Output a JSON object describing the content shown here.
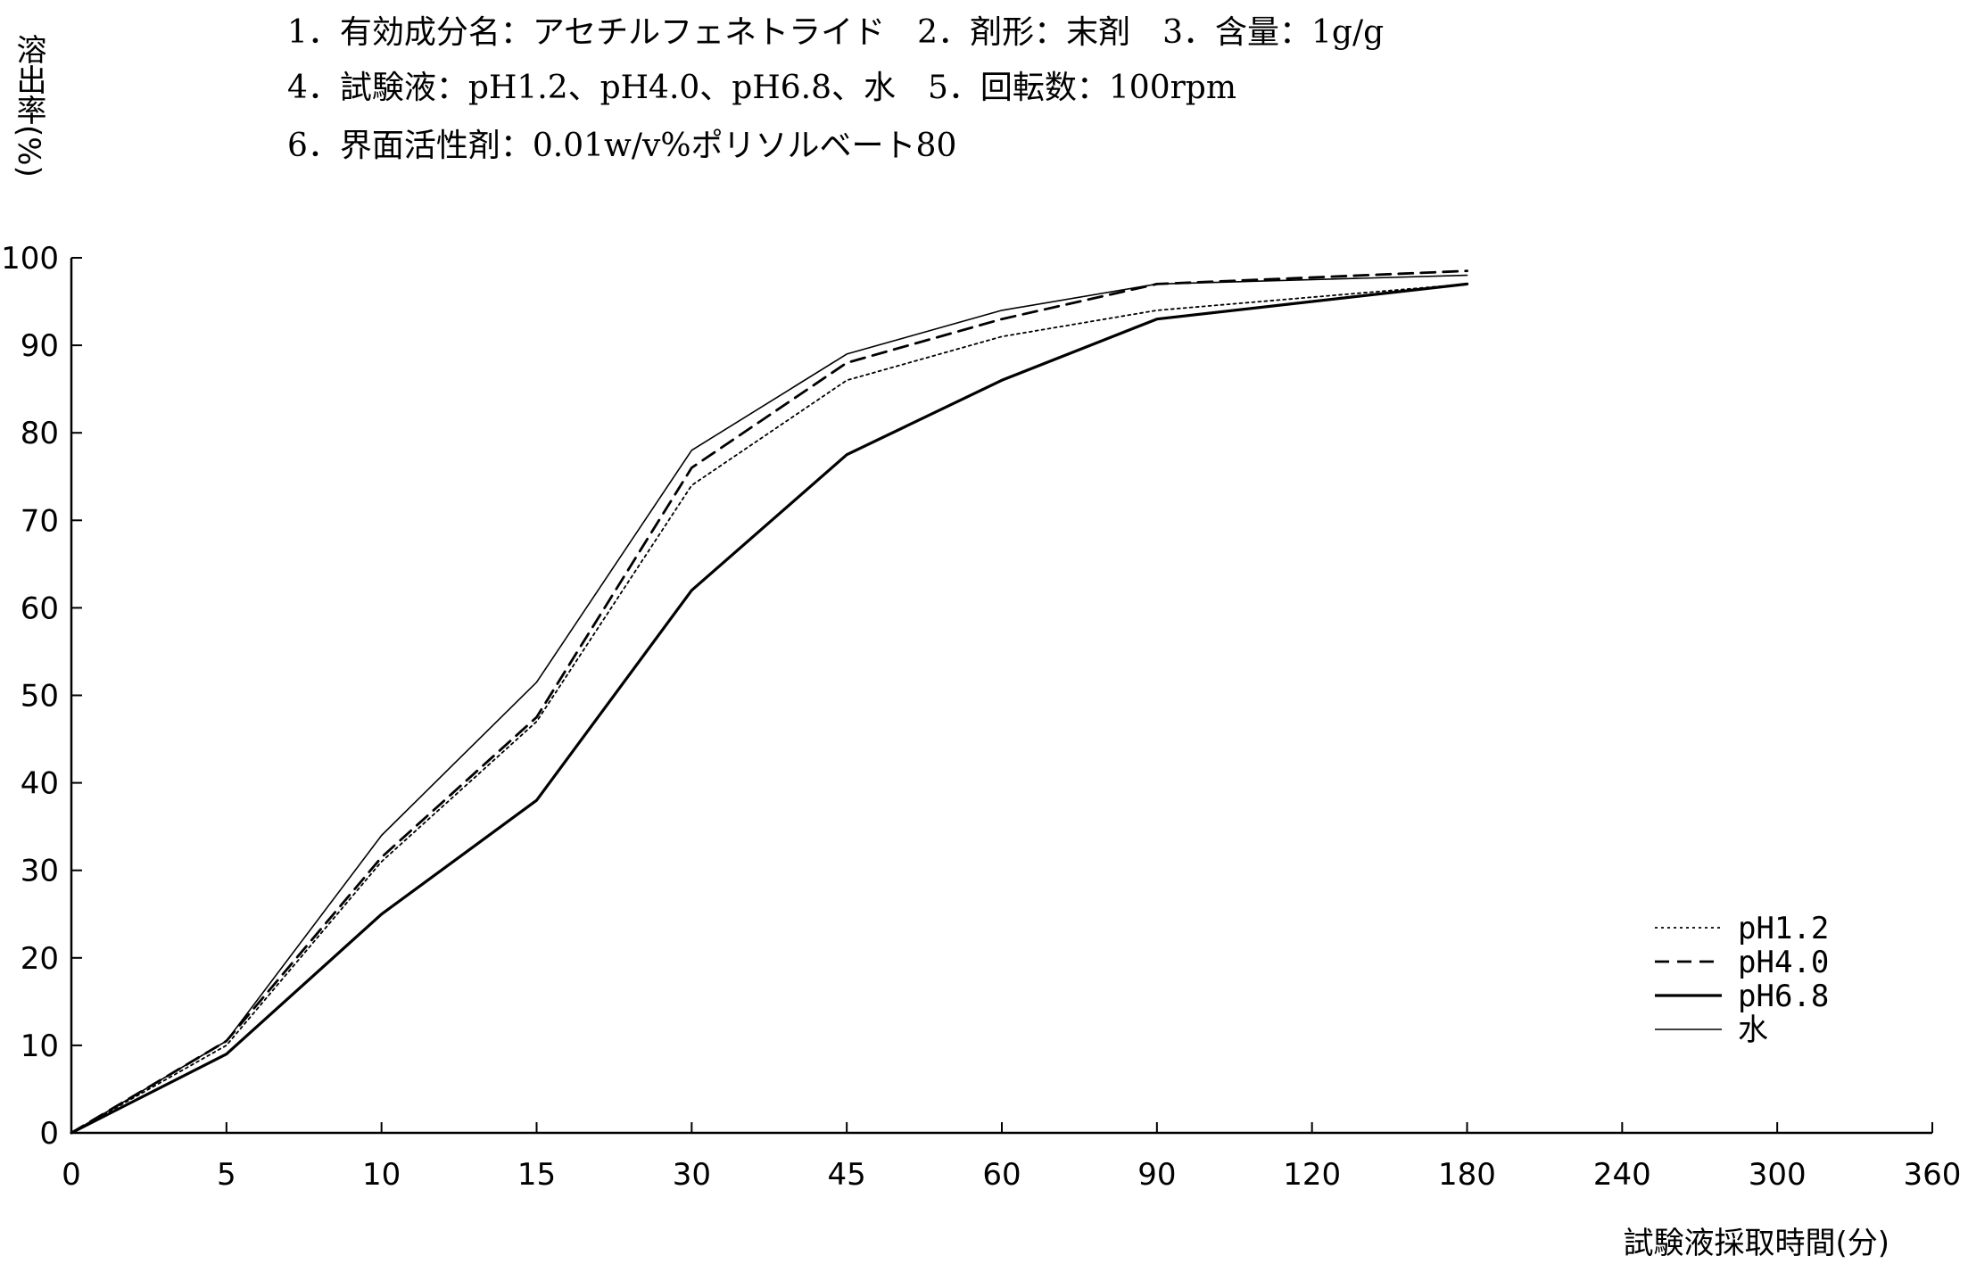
{
  "chart_data": {
    "type": "line",
    "info_lines": [
      "1．有効成分名：アセチルフェネトライド　2．剤形：末剤　3．含量：1g/g",
      "4．試験液：pH1.2、pH4.0、pH6.8、水　5．回転数：100rpm",
      "6．界面活性剤：0.01w/v%ポリソルベート80"
    ],
    "ylabel": "溶出率(%)",
    "xlabel": "試験液採取時間(分)",
    "categories": [
      "0",
      "5",
      "10",
      "15",
      "30",
      "45",
      "60",
      "90",
      "120",
      "180",
      "240",
      "300",
      "360"
    ],
    "yticks": [
      "0",
      "10",
      "20",
      "30",
      "40",
      "50",
      "60",
      "70",
      "80",
      "90",
      "100"
    ],
    "ylim": [
      0,
      100
    ],
    "x_scale": "categorical (equal spacing per sampling time)",
    "grid": false,
    "legend_position": "bottom-right",
    "series": [
      {
        "name": "pH1.2",
        "line_style": "dotted",
        "x": [
          "0",
          "5",
          "10",
          "15",
          "30",
          "45",
          "60",
          "90",
          "180"
        ],
        "values": [
          0,
          10,
          31,
          47,
          74,
          86,
          91,
          94,
          97
        ]
      },
      {
        "name": "pH4.0",
        "line_style": "dashed",
        "x": [
          "0",
          "5",
          "10",
          "15",
          "30",
          "45",
          "60",
          "90",
          "180"
        ],
        "values": [
          0,
          10.5,
          31.5,
          47.5,
          76,
          88,
          93,
          97,
          98.5
        ]
      },
      {
        "name": "pH6.8",
        "line_style": "solid-thick",
        "x": [
          "0",
          "5",
          "10",
          "15",
          "30",
          "45",
          "60",
          "90",
          "180"
        ],
        "values": [
          0,
          9,
          25,
          38,
          62,
          77.5,
          86,
          93,
          97
        ]
      },
      {
        "name": "水",
        "line_style": "solid-thin",
        "x": [
          "0",
          "5",
          "10",
          "15",
          "30",
          "45",
          "60",
          "90",
          "180"
        ],
        "values": [
          0,
          10.5,
          34,
          51.5,
          78,
          89,
          94,
          97,
          98
        ]
      }
    ]
  }
}
